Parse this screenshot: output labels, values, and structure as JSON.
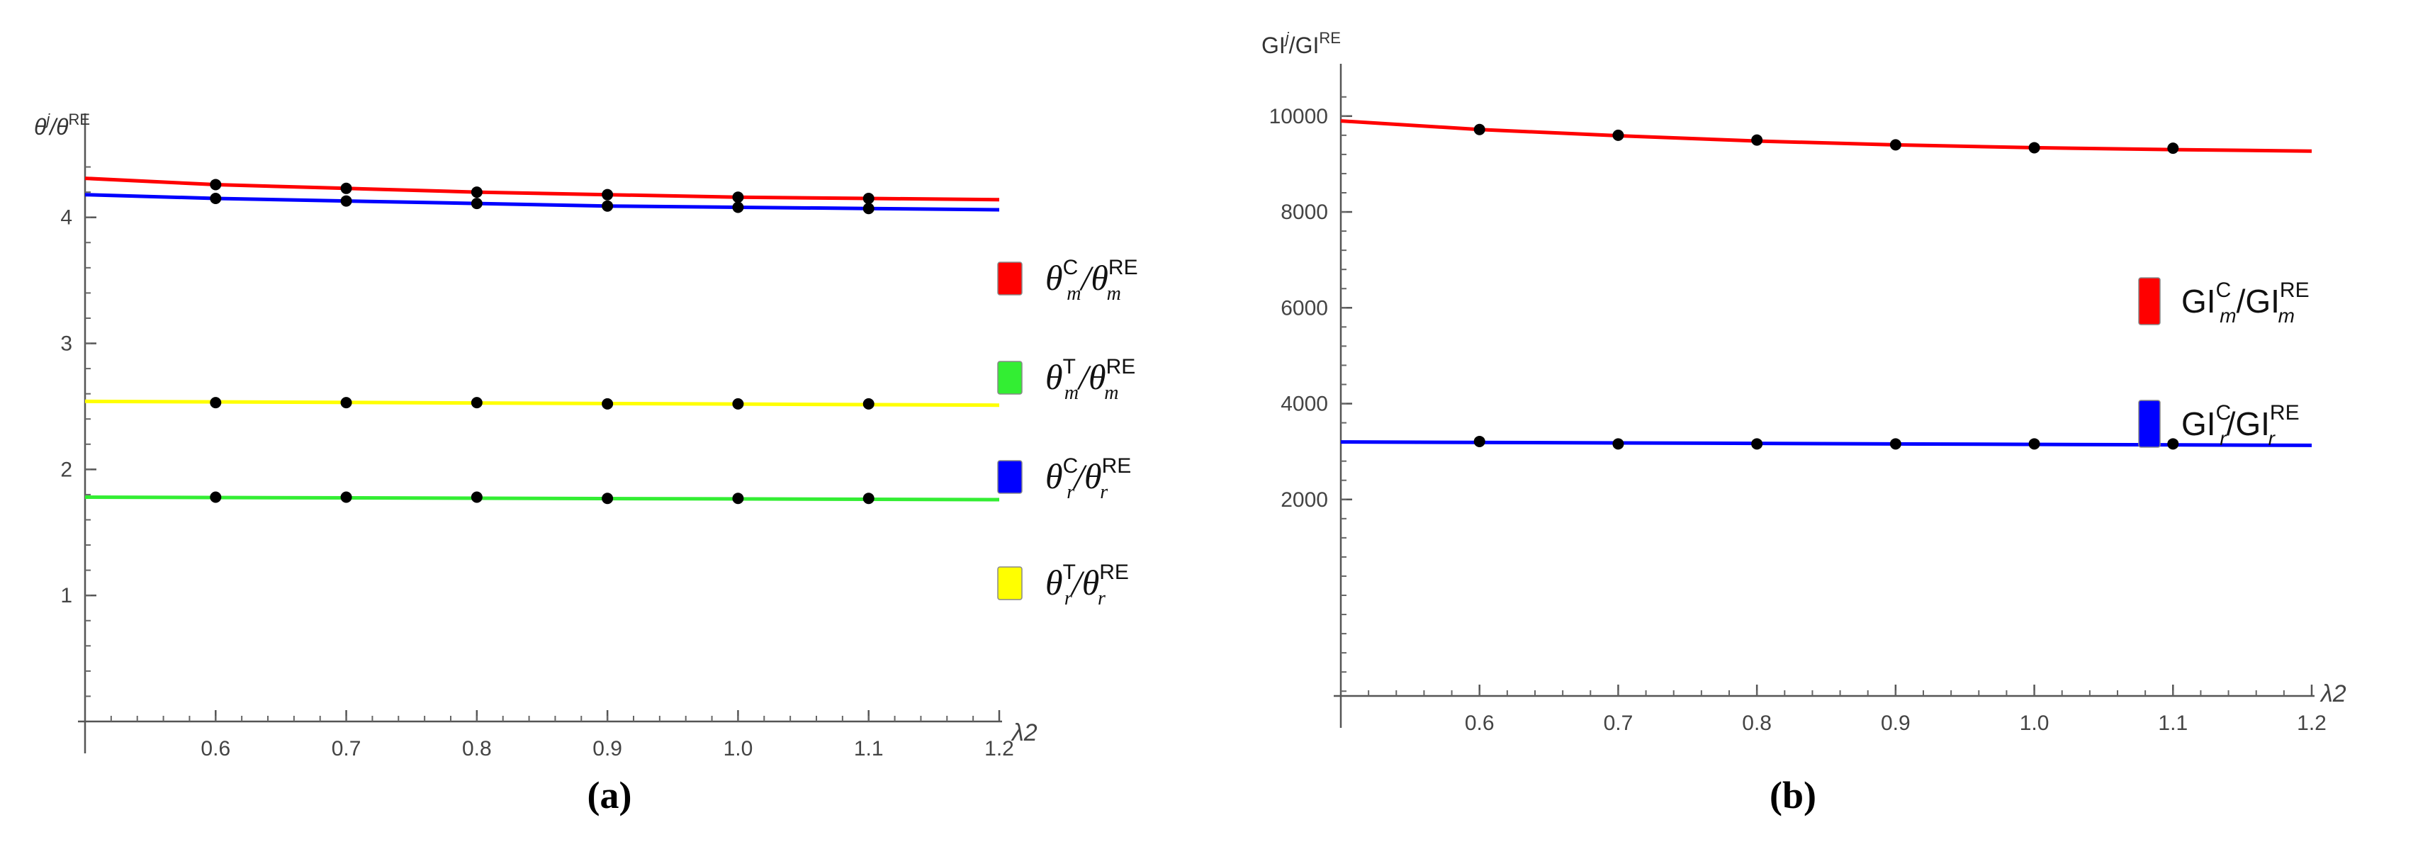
{
  "chart_data": [
    {
      "type": "line",
      "panel": "(a)",
      "ylabel": {
        "base": "θ",
        "sup1": "j",
        "sep": "/θ",
        "sup2": "RE"
      },
      "xlabel": "λ2",
      "xlim": [
        0.5,
        1.2
      ],
      "ylim": [
        0,
        4.6
      ],
      "xticks": [
        "0.6",
        "0.7",
        "0.8",
        "0.9",
        "1.0",
        "1.1",
        "1.2"
      ],
      "xtick_values": [
        0.6,
        0.7,
        0.8,
        0.9,
        1.0,
        1.1,
        1.2
      ],
      "yticks": [
        "1",
        "2",
        "3",
        "4"
      ],
      "ytick_values": [
        1,
        2,
        3,
        4
      ],
      "series": [
        {
          "name": "θmC/θmRE",
          "color": "#ff0000",
          "legend": {
            "base": "θ",
            "sub": "m",
            "sup": "C",
            "sep": "/θ",
            "sub2": "m",
            "sup2": "RE"
          },
          "line_x": [
            0.5,
            0.6,
            0.7,
            0.8,
            0.9,
            1.0,
            1.1,
            1.2
          ],
          "line_y": [
            4.31,
            4.26,
            4.23,
            4.2,
            4.18,
            4.16,
            4.15,
            4.14
          ],
          "points_x": [
            0.6,
            0.7,
            0.8,
            0.9,
            1.0,
            1.1
          ],
          "points_y": [
            4.26,
            4.23,
            4.2,
            4.18,
            4.16,
            4.15
          ]
        },
        {
          "name": "θmT/θmRE",
          "color": "#33ee33",
          "legend": {
            "base": "θ",
            "sub": "m",
            "sup": "T",
            "sep": "/θ",
            "sub2": "m",
            "sup2": "RE"
          },
          "line_x": [
            0.5,
            1.2
          ],
          "line_y": [
            1.78,
            1.76
          ],
          "points_x": [
            0.6,
            0.7,
            0.8,
            0.9,
            1.0,
            1.1
          ],
          "points_y": [
            1.78,
            1.78,
            1.78,
            1.77,
            1.77,
            1.77
          ]
        },
        {
          "name": "θrC/θrRE",
          "color": "#0000ff",
          "legend": {
            "base": "θ",
            "sub": "r",
            "sup": "C",
            "sep": "/θ",
            "sub2": "r",
            "sup2": "RE"
          },
          "line_x": [
            0.5,
            0.6,
            0.7,
            0.8,
            0.9,
            1.0,
            1.1,
            1.2
          ],
          "line_y": [
            4.18,
            4.15,
            4.13,
            4.11,
            4.09,
            4.08,
            4.07,
            4.06
          ],
          "points_x": [
            0.6,
            0.7,
            0.8,
            0.9,
            1.0,
            1.1
          ],
          "points_y": [
            4.15,
            4.13,
            4.11,
            4.09,
            4.08,
            4.07
          ]
        },
        {
          "name": "θrT/θrRE",
          "color": "#ffff00",
          "legend": {
            "base": "θ",
            "sub": "r",
            "sup": "T",
            "sep": "/θ",
            "sub2": "r",
            "sup2": "RE"
          },
          "line_x": [
            0.5,
            1.2
          ],
          "line_y": [
            2.54,
            2.51
          ],
          "points_x": [
            0.6,
            0.7,
            0.8,
            0.9,
            1.0,
            1.1
          ],
          "points_y": [
            2.53,
            2.53,
            2.53,
            2.52,
            2.52,
            2.52
          ]
        }
      ],
      "caption": "(a)"
    },
    {
      "type": "line",
      "panel": "(b)",
      "ylabel": {
        "base": "GI",
        "sup1": "j",
        "sep": "/GI",
        "sup2": "RE"
      },
      "xlabel": "λ2",
      "xlim": [
        0.5,
        1.2
      ],
      "ylim": [
        -2100,
        10500
      ],
      "xticks": [
        "0.6",
        "0.7",
        "0.8",
        "0.9",
        "1.0",
        "1.1",
        "1.2"
      ],
      "xtick_values": [
        0.6,
        0.7,
        0.8,
        0.9,
        1.0,
        1.1,
        1.2
      ],
      "yticks": [
        "2000",
        "4000",
        "6000",
        "8000",
        "10000"
      ],
      "ytick_values": [
        2000,
        4000,
        6000,
        8000,
        10000
      ],
      "series": [
        {
          "name": "GImC/GImRE",
          "color": "#ff0000",
          "legend": {
            "base": "GI",
            "sub": "m",
            "sup": "C",
            "sep": "/GI",
            "sub2": "m",
            "sup2": "RE"
          },
          "line_x": [
            0.5,
            0.6,
            0.7,
            0.8,
            0.9,
            1.0,
            1.1,
            1.2
          ],
          "line_y": [
            9900,
            9720,
            9590,
            9480,
            9400,
            9340,
            9300,
            9270
          ],
          "points_x": [
            0.6,
            0.7,
            0.8,
            0.9,
            1.0,
            1.1
          ],
          "points_y": [
            9720,
            9600,
            9500,
            9400,
            9340,
            9330
          ]
        },
        {
          "name": "GIrC/GIrRE",
          "color": "#0000ff",
          "legend": {
            "base": "GI",
            "sub": "r",
            "sup": "C",
            "sep": "/GI",
            "sub2": "r",
            "sup2": "RE"
          },
          "line_x": [
            0.5,
            1.2
          ],
          "line_y": [
            3200,
            3130
          ],
          "points_x": [
            0.6,
            0.7,
            0.8,
            0.9,
            1.0,
            1.1
          ],
          "points_y": [
            3210,
            3160,
            3160,
            3160,
            3160,
            3160
          ]
        }
      ],
      "caption": "(b)"
    }
  ]
}
